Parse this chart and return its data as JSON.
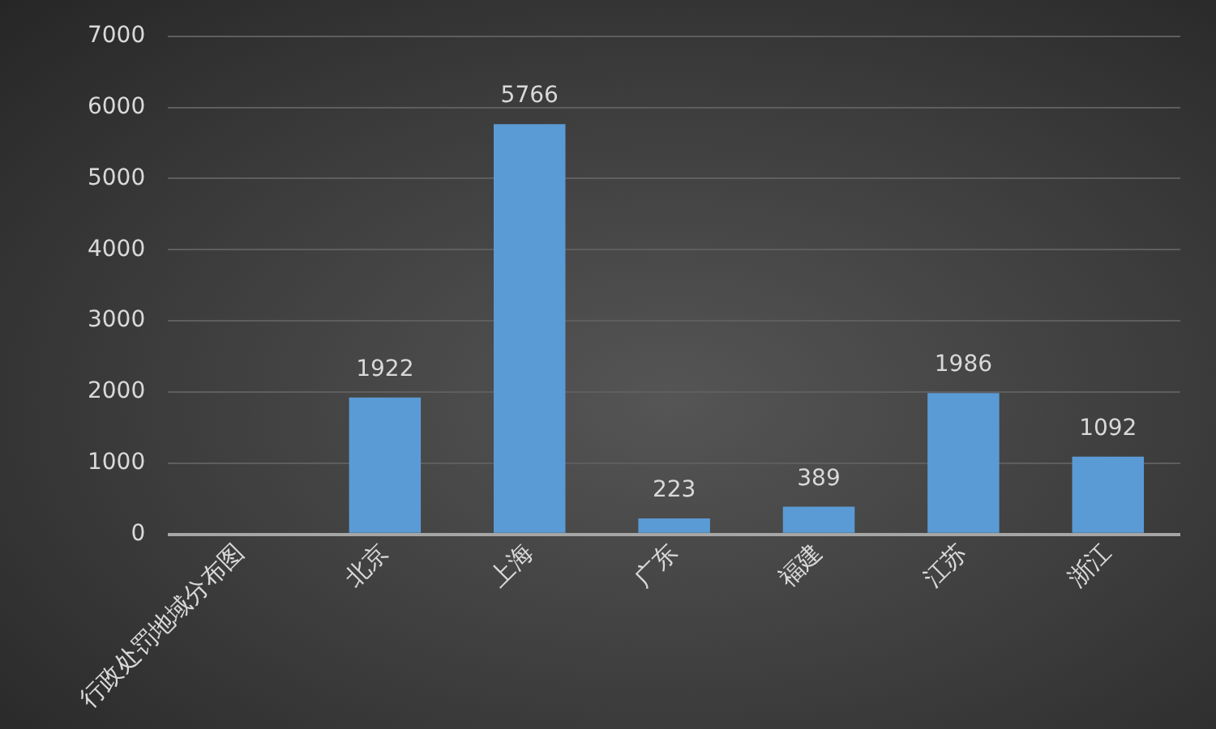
{
  "chart_data": {
    "type": "bar",
    "categories": [
      "行政处罚地域分布图",
      "北京",
      "上海",
      "广东",
      "福建",
      "江苏",
      "浙江"
    ],
    "values": [
      null,
      1922,
      5766,
      223,
      389,
      1986,
      1092
    ],
    "color": "#5b9bd5",
    "ylim": [
      0,
      7000
    ],
    "yticks": [
      0,
      1000,
      2000,
      3000,
      4000,
      5000,
      6000,
      7000
    ],
    "grid": "y",
    "legend": false,
    "data_labels": true
  }
}
